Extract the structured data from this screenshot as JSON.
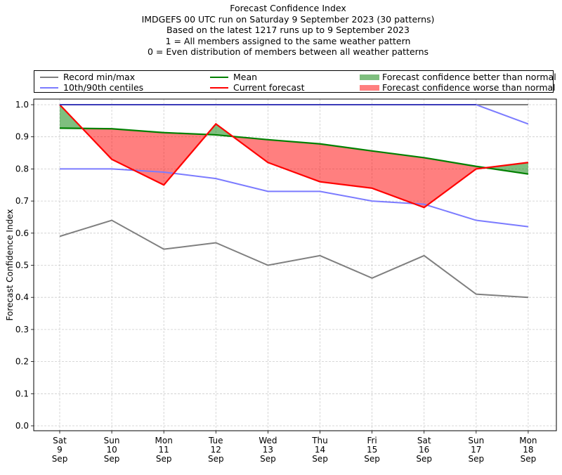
{
  "chart_data": {
    "type": "line",
    "title": "Forecast Confidence Index",
    "subtitle_lines": [
      "IMDGEFS 00 UTC run on Saturday 9 September 2023 (30 patterns)",
      "Based on the latest 1217 runs up to 9 September 2023",
      "1 = All members assigned to the same weather pattern",
      "0 = Even distribution of members between all weather patterns"
    ],
    "xlabel": "",
    "ylabel": "Forecast Confidence Index",
    "ylim": [
      0.0,
      1.0
    ],
    "yticks": [
      "0.0",
      "0.1",
      "0.2",
      "0.3",
      "0.4",
      "0.5",
      "0.6",
      "0.7",
      "0.8",
      "0.9",
      "1.0"
    ],
    "grid": true,
    "legend_position": "top, above plot",
    "categories": [
      [
        "Sat",
        "9",
        "Sep"
      ],
      [
        "Sun",
        "10",
        "Sep"
      ],
      [
        "Mon",
        "11",
        "Sep"
      ],
      [
        "Tue",
        "12",
        "Sep"
      ],
      [
        "Wed",
        "13",
        "Sep"
      ],
      [
        "Thu",
        "14",
        "Sep"
      ],
      [
        "Fri",
        "15",
        "Sep"
      ],
      [
        "Sat",
        "16",
        "Sep"
      ],
      [
        "Sun",
        "17",
        "Sep"
      ],
      [
        "Mon",
        "18",
        "Sep"
      ]
    ],
    "series": [
      {
        "name": "Record max",
        "legend_group": "Record min/max",
        "color": "#7f7f7f",
        "values": [
          1.0,
          1.0,
          1.0,
          1.0,
          1.0,
          1.0,
          1.0,
          1.0,
          1.0,
          1.0
        ]
      },
      {
        "name": "Record min",
        "legend_group": "Record min/max",
        "color": "#7f7f7f",
        "values": [
          0.59,
          0.64,
          0.55,
          0.57,
          0.5,
          0.53,
          0.46,
          0.53,
          0.41,
          0.4
        ]
      },
      {
        "name": "90th centile",
        "legend_group": "10th/90th centiles",
        "color": "#7b7bff",
        "values": [
          1.0,
          1.0,
          1.0,
          1.0,
          1.0,
          1.0,
          1.0,
          1.0,
          1.0,
          0.94
        ]
      },
      {
        "name": "10th centile",
        "legend_group": "10th/90th centiles",
        "color": "#7b7bff",
        "values": [
          0.8,
          0.8,
          0.79,
          0.77,
          0.73,
          0.73,
          0.7,
          0.69,
          0.64,
          0.62
        ]
      },
      {
        "name": "Mean",
        "legend_group": "Mean",
        "color": "#008000",
        "values": [
          0.927,
          0.925,
          0.913,
          0.906,
          0.891,
          0.878,
          0.856,
          0.835,
          0.808,
          0.784
        ]
      },
      {
        "name": "Current forecast",
        "legend_group": "Current forecast",
        "color": "#ff0000",
        "values": [
          1.0,
          0.83,
          0.75,
          0.94,
          0.82,
          0.76,
          0.74,
          0.68,
          0.8,
          0.82
        ]
      }
    ],
    "fills": [
      {
        "name": "Forecast confidence better than normal",
        "color": "#008000",
        "opacity": 0.5,
        "between": [
          "Current forecast",
          "Mean"
        ],
        "where": "current > mean"
      },
      {
        "name": "Forecast confidence worse than normal",
        "color": "#ff0000",
        "opacity": 0.5,
        "between": [
          "Current forecast",
          "Mean"
        ],
        "where": "current < mean"
      }
    ],
    "legend": [
      {
        "label": "Record min/max",
        "kind": "line",
        "color": "#7f7f7f"
      },
      {
        "label": "10th/90th centiles",
        "kind": "line",
        "color": "#7b7bff"
      },
      {
        "label": "Mean",
        "kind": "line",
        "color": "#008000"
      },
      {
        "label": "Current forecast",
        "kind": "line",
        "color": "#ff0000"
      },
      {
        "label": "Forecast confidence better than normal",
        "kind": "patch",
        "color": "#7fbf7f"
      },
      {
        "label": "Forecast confidence worse than normal",
        "kind": "patch",
        "color": "#ff7f7f"
      }
    ]
  }
}
